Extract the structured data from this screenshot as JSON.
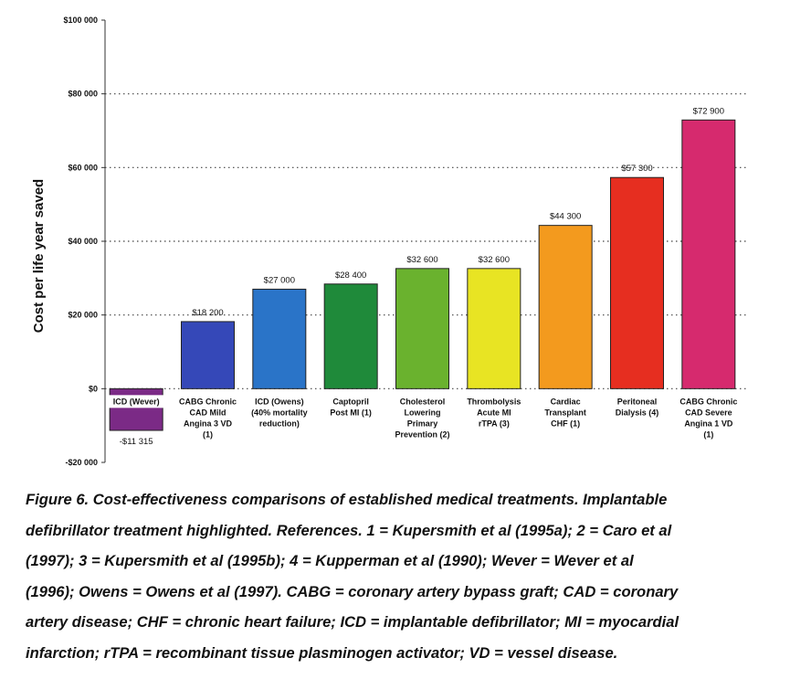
{
  "chart_data": {
    "type": "bar",
    "ylabel": "Cost per life year saved",
    "ylim": [
      -20000,
      100000
    ],
    "yticks": [
      {
        "value": 100000,
        "label": "$100 000"
      },
      {
        "value": 80000,
        "label": "$80 000"
      },
      {
        "value": 60000,
        "label": "$60 000"
      },
      {
        "value": 40000,
        "label": "$40 000"
      },
      {
        "value": 20000,
        "label": "$20 000"
      },
      {
        "value": 0,
        "label": "$0"
      },
      {
        "value": -20000,
        "label": "-$20 000"
      }
    ],
    "grid": "horizontal dotted",
    "bars": [
      {
        "category": [
          "ICD (Wever)"
        ],
        "value": -11315,
        "value_label": "-$11 315",
        "color": "#7b2a86"
      },
      {
        "category": [
          "CABG Chronic",
          "CAD Mild",
          "Angina 3 VD",
          "(1)"
        ],
        "value": 18200,
        "value_label": "$18 200",
        "color": "#3548b8"
      },
      {
        "category": [
          "ICD (Owens)",
          "(40% mortality",
          "reduction)"
        ],
        "value": 27000,
        "value_label": "$27 000",
        "color": "#2a74c8"
      },
      {
        "category": [
          "Captopril",
          "Post MI (1)"
        ],
        "value": 28400,
        "value_label": "$28 400",
        "color": "#1f8a3a"
      },
      {
        "category": [
          "Cholesterol",
          "Lowering",
          "Primary",
          "Prevention (2)"
        ],
        "value": 32600,
        "value_label": "$32 600",
        "color": "#6ab22e"
      },
      {
        "category": [
          "Thrombolysis",
          "Acute MI",
          "rTPA (3)"
        ],
        "value": 32600,
        "value_label": "$32 600",
        "color": "#e8e423"
      },
      {
        "category": [
          "Cardiac",
          "Transplant",
          "CHF (1)"
        ],
        "value": 44300,
        "value_label": "$44 300",
        "color": "#f39a1e"
      },
      {
        "category": [
          "Peritoneal",
          "Dialysis (4)"
        ],
        "value": 57300,
        "value_label": "$57 300",
        "color": "#e62e20"
      },
      {
        "category": [
          "CABG Chronic",
          "CAD Severe",
          "Angina 1 VD",
          "(1)"
        ],
        "value": 72900,
        "value_label": "$72 900",
        "color": "#d62a6e"
      }
    ]
  },
  "caption": {
    "lines": [
      "Figure 6. Cost-effectiveness comparisons of established medical treatments. Implantable",
      "defibrillator treatment highlighted. References. 1 = Kupersmith et al (1995a); 2 = Caro et al",
      "(1997); 3 = Kupersmith et al (1995b); 4 = Kupperman et al (1990); Wever = Wever et al",
      "(1996); Owens = Owens et al (1997). CABG = coronary artery bypass graft; CAD = coronary",
      "artery disease; CHF = chronic heart failure; ICD = implantable defibrillator; MI = myocardial",
      "infarction; rTPA = recombinant tissue plasminogen activator; VD = vessel disease."
    ]
  }
}
